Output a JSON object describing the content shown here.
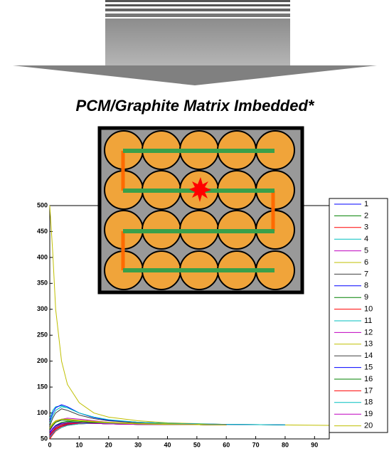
{
  "chart_data": {
    "type": "line",
    "title": "PCM/Graphite Matrix Imbedded*",
    "x": [
      0,
      1,
      2,
      4,
      6,
      10,
      15,
      20,
      30,
      40,
      60,
      80,
      95
    ],
    "xlim": [
      0,
      95
    ],
    "xticks": [
      0,
      10,
      20,
      30,
      40,
      50,
      60,
      70,
      80,
      90
    ],
    "ylim": [
      50,
      500
    ],
    "yticks": [
      50,
      100,
      150,
      200,
      250,
      300,
      350,
      400,
      450,
      500
    ],
    "series": [
      {
        "name": "1",
        "color": "#0000ff",
        "values": [
          55,
          62,
          68,
          75,
          78,
          80,
          80,
          79,
          78,
          78,
          77,
          null,
          null
        ]
      },
      {
        "name": "2",
        "color": "#008000",
        "values": [
          60,
          70,
          76,
          82,
          84,
          82,
          80,
          79,
          78,
          78,
          77,
          null,
          null
        ]
      },
      {
        "name": "3",
        "color": "#ff0000",
        "values": [
          50,
          58,
          65,
          72,
          76,
          79,
          80,
          80,
          79,
          78,
          77,
          null,
          null
        ]
      },
      {
        "name": "4",
        "color": "#00bfbf",
        "values": [
          90,
          105,
          112,
          114,
          110,
          100,
          92,
          86,
          82,
          80,
          78,
          77,
          null
        ]
      },
      {
        "name": "5",
        "color": "#bf00bf",
        "values": [
          65,
          75,
          82,
          88,
          90,
          88,
          85,
          82,
          80,
          79,
          78,
          null,
          null
        ]
      },
      {
        "name": "6",
        "color": "#bfbf00",
        "values": [
          500,
          410,
          300,
          200,
          155,
          120,
          100,
          92,
          85,
          81,
          78,
          77,
          76
        ]
      },
      {
        "name": "7",
        "color": "#404040",
        "values": [
          75,
          90,
          100,
          108,
          105,
          96,
          89,
          85,
          81,
          79,
          78,
          77,
          null
        ]
      },
      {
        "name": "8",
        "color": "#0000ff",
        "values": [
          85,
          100,
          110,
          116,
          112,
          100,
          91,
          86,
          82,
          80,
          78,
          77,
          null
        ]
      },
      {
        "name": "9",
        "color": "#008000",
        "values": [
          60,
          68,
          75,
          80,
          82,
          82,
          81,
          80,
          79,
          78,
          77,
          null,
          null
        ]
      },
      {
        "name": "10",
        "color": "#ff0000",
        "values": [
          52,
          60,
          68,
          74,
          77,
          79,
          80,
          80,
          79,
          78,
          77,
          null,
          null
        ]
      },
      {
        "name": "11",
        "color": "#00bfbf",
        "values": [
          80,
          95,
          105,
          112,
          110,
          100,
          92,
          87,
          82,
          80,
          78,
          77,
          null
        ]
      },
      {
        "name": "12",
        "color": "#bf00bf",
        "values": [
          55,
          62,
          70,
          76,
          79,
          80,
          80,
          79,
          78,
          78,
          77,
          null,
          null
        ]
      },
      {
        "name": "13",
        "color": "#bfbf00",
        "values": [
          70,
          78,
          84,
          88,
          88,
          86,
          84,
          82,
          80,
          79,
          77,
          null,
          null
        ]
      },
      {
        "name": "14",
        "color": "#404040",
        "values": [
          58,
          65,
          72,
          78,
          80,
          81,
          80,
          79,
          78,
          78,
          77,
          null,
          null
        ]
      },
      {
        "name": "15",
        "color": "#0000ff",
        "values": [
          62,
          70,
          76,
          80,
          81,
          81,
          80,
          79,
          78,
          78,
          77,
          null,
          null
        ]
      },
      {
        "name": "16",
        "color": "#008000",
        "values": [
          68,
          76,
          82,
          86,
          86,
          84,
          82,
          81,
          79,
          78,
          77,
          null,
          null
        ]
      },
      {
        "name": "17",
        "color": "#ff0000",
        "values": [
          57,
          64,
          70,
          76,
          79,
          80,
          80,
          79,
          78,
          78,
          77,
          null,
          null
        ]
      },
      {
        "name": "18",
        "color": "#00bfbf",
        "values": [
          53,
          60,
          66,
          72,
          76,
          79,
          80,
          80,
          79,
          78,
          77,
          null,
          null
        ]
      },
      {
        "name": "19",
        "color": "#bf00bf",
        "values": [
          60,
          68,
          74,
          79,
          81,
          81,
          80,
          79,
          78,
          78,
          77,
          null,
          null
        ]
      },
      {
        "name": "20",
        "color": "#bfbf00",
        "values": [
          72,
          80,
          85,
          88,
          87,
          85,
          83,
          81,
          79,
          78,
          77,
          null,
          null
        ]
      }
    ]
  }
}
